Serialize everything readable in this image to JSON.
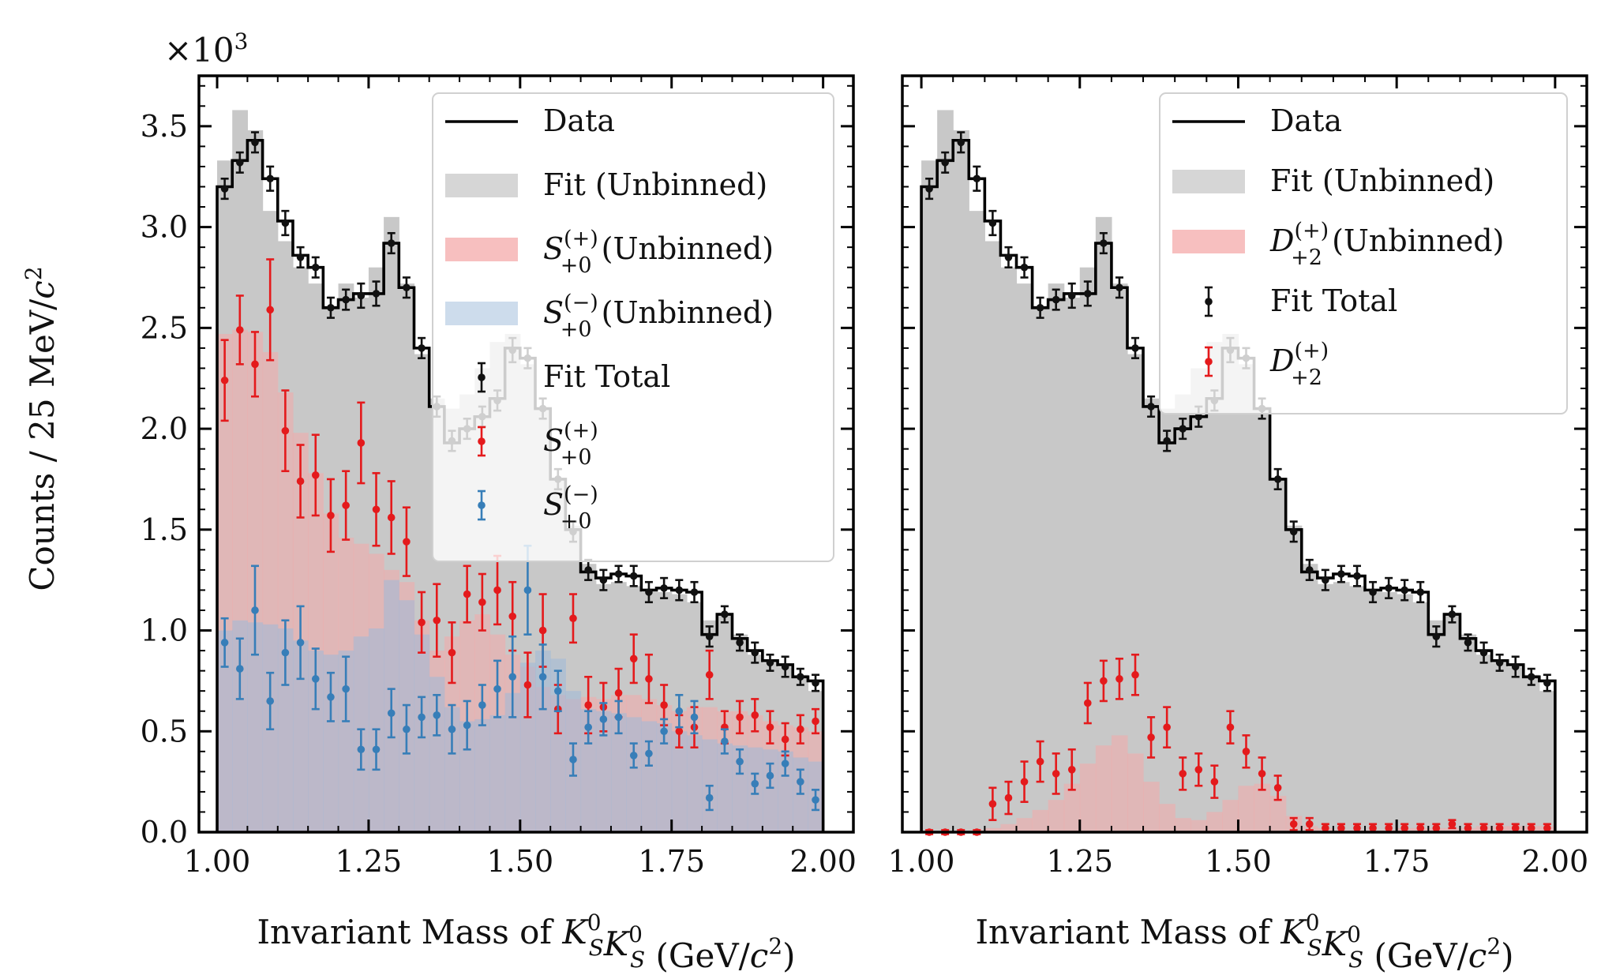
{
  "figure": {
    "y_multiplier_base": "×10",
    "y_multiplier_exp": "3",
    "ylabel_text": "Counts / 25 MeV/",
    "ylabel_var": "c",
    "ylabel_exp": "2"
  },
  "chart_data": [
    {
      "type": "bar",
      "panel": "left",
      "xlabel": {
        "pre": "Invariant Mass of ",
        "k": "K",
        "sup": "0",
        "sub": "S",
        "post": " (GeV/",
        "c": "c",
        "csup": "2",
        "close": ")"
      },
      "ylabel": "Counts / 25 MeV/c²",
      "xlim": [
        0.97,
        2.05
      ],
      "ylim": [
        0.0,
        3.75
      ],
      "y_scale_factor": 1000,
      "xticks": [
        "1.00",
        "1.25",
        "1.50",
        "1.75",
        "2.00"
      ],
      "yticks": [
        "0.0",
        "0.5",
        "1.0",
        "1.5",
        "2.0",
        "2.5",
        "3.0",
        "3.5"
      ],
      "x": [
        1.0125,
        1.0375,
        1.0625,
        1.0875,
        1.1125,
        1.1375,
        1.1625,
        1.1875,
        1.2125,
        1.2375,
        1.2625,
        1.2875,
        1.3125,
        1.3375,
        1.3625,
        1.3875,
        1.4125,
        1.4375,
        1.4625,
        1.4875,
        1.5125,
        1.5375,
        1.5625,
        1.5875,
        1.6125,
        1.6375,
        1.6625,
        1.6875,
        1.7125,
        1.7375,
        1.7625,
        1.7875,
        1.8125,
        1.8375,
        1.8625,
        1.8875,
        1.9125,
        1.9375,
        1.9625,
        1.9875
      ],
      "series": [
        {
          "name": "Data",
          "kind": "step",
          "color": "#000000",
          "values": [
            3.2,
            3.33,
            3.43,
            3.24,
            3.03,
            2.86,
            2.8,
            2.6,
            2.64,
            2.67,
            2.67,
            2.92,
            2.7,
            2.4,
            2.11,
            1.93,
            2.0,
            2.06,
            2.15,
            2.4,
            2.35,
            2.1,
            1.75,
            1.5,
            1.29,
            1.26,
            1.28,
            1.27,
            1.2,
            1.21,
            1.2,
            1.19,
            0.98,
            1.08,
            0.96,
            0.9,
            0.85,
            0.83,
            0.77,
            0.75
          ]
        },
        {
          "name": "Fit (Unbinned)",
          "kind": "fill",
          "color": "#c8c8c8",
          "values": [
            3.33,
            3.58,
            3.48,
            3.08,
            2.93,
            2.8,
            2.72,
            2.61,
            2.72,
            2.65,
            2.8,
            3.05,
            2.72,
            2.37,
            2.15,
            2.1,
            2.17,
            2.3,
            2.43,
            2.47,
            2.32,
            2.1,
            1.75,
            1.52,
            1.33,
            1.23,
            1.24,
            1.22,
            1.19,
            1.19,
            1.18,
            1.14,
            1.05,
            1.08,
            0.98,
            0.88,
            0.84,
            0.82,
            0.78,
            0.7
          ]
        },
        {
          "name": "S(+)+0 (Unbinned)",
          "kind": "fill",
          "color": "#f4aaaa",
          "values": [
            2.47,
            2.49,
            2.48,
            2.38,
            2.18,
            1.98,
            1.78,
            1.58,
            1.46,
            1.43,
            1.38,
            1.3,
            1.24,
            1.05,
            0.9,
            0.97,
            1.05,
            1.08,
            0.98,
            0.88,
            0.82,
            0.72,
            0.68,
            0.66,
            0.67,
            0.66,
            0.68,
            0.68,
            0.66,
            0.63,
            0.6,
            0.62,
            0.62,
            0.6,
            0.6,
            0.58,
            0.55,
            0.53,
            0.52,
            0.5
          ]
        },
        {
          "name": "S(−)+0 (Unbinned)",
          "kind": "fill",
          "color": "#9fbad9",
          "values": [
            1.0,
            1.05,
            1.04,
            1.03,
            1.01,
            0.95,
            0.9,
            0.88,
            0.9,
            0.97,
            1.01,
            1.25,
            1.15,
            0.98,
            0.77,
            0.62,
            0.55,
            0.56,
            0.58,
            0.69,
            0.84,
            0.9,
            0.86,
            0.7,
            0.61,
            0.6,
            0.59,
            0.57,
            0.55,
            0.54,
            0.5,
            0.48,
            0.46,
            0.44,
            0.43,
            0.42,
            0.41,
            0.4,
            0.37,
            0.35
          ]
        },
        {
          "name": "Fit Total",
          "kind": "errorbar",
          "color": "#111111",
          "values": [
            3.19,
            3.32,
            3.42,
            3.24,
            3.02,
            2.85,
            2.8,
            2.6,
            2.64,
            2.66,
            2.67,
            2.92,
            2.7,
            2.4,
            2.11,
            1.94,
            2.0,
            2.06,
            2.14,
            2.39,
            2.35,
            2.1,
            1.75,
            1.49,
            1.3,
            1.25,
            1.28,
            1.27,
            1.19,
            1.21,
            1.2,
            1.19,
            0.97,
            1.08,
            0.94,
            0.89,
            0.84,
            0.82,
            0.77,
            0.74
          ],
          "errors": [
            0.05,
            0.05,
            0.05,
            0.06,
            0.06,
            0.05,
            0.05,
            0.05,
            0.05,
            0.06,
            0.06,
            0.05,
            0.05,
            0.05,
            0.05,
            0.05,
            0.05,
            0.05,
            0.05,
            0.06,
            0.05,
            0.05,
            0.05,
            0.05,
            0.05,
            0.05,
            0.04,
            0.05,
            0.05,
            0.05,
            0.05,
            0.05,
            0.05,
            0.04,
            0.04,
            0.05,
            0.04,
            0.05,
            0.04,
            0.04
          ]
        },
        {
          "name": "S(+)+0",
          "kind": "errorbar",
          "color": "#e41a1c",
          "values": [
            2.24,
            2.49,
            2.32,
            2.59,
            1.99,
            1.74,
            1.77,
            1.57,
            1.62,
            1.93,
            1.6,
            1.56,
            1.44,
            1.04,
            1.05,
            0.89,
            1.18,
            1.14,
            1.2,
            1.07,
            0.73,
            1.0,
            0.61,
            1.06,
            0.63,
            0.62,
            0.69,
            0.86,
            0.76,
            0.63,
            0.5,
            0.52,
            0.78,
            0.52,
            0.57,
            0.58,
            0.52,
            0.46,
            0.51,
            0.55
          ],
          "errors": [
            0.2,
            0.17,
            0.16,
            0.25,
            0.2,
            0.18,
            0.2,
            0.18,
            0.17,
            0.2,
            0.18,
            0.18,
            0.17,
            0.15,
            0.18,
            0.15,
            0.14,
            0.14,
            0.17,
            0.17,
            0.16,
            0.18,
            0.12,
            0.12,
            0.14,
            0.12,
            0.12,
            0.12,
            0.12,
            0.1,
            0.08,
            0.1,
            0.12,
            0.08,
            0.08,
            0.08,
            0.08,
            0.08,
            0.07,
            0.06
          ]
        },
        {
          "name": "S(−)+0",
          "kind": "errorbar",
          "color": "#377eb8",
          "values": [
            0.94,
            0.81,
            1.1,
            0.65,
            0.89,
            0.94,
            0.76,
            0.67,
            0.71,
            0.41,
            0.41,
            0.59,
            0.51,
            0.57,
            0.58,
            0.51,
            0.53,
            0.63,
            0.71,
            0.77,
            1.2,
            0.77,
            0.7,
            0.36,
            0.52,
            0.56,
            0.57,
            0.38,
            0.39,
            0.5,
            0.6,
            0.57,
            0.17,
            0.45,
            0.35,
            0.24,
            0.28,
            0.34,
            0.25,
            0.16
          ],
          "errors": [
            0.12,
            0.15,
            0.22,
            0.14,
            0.16,
            0.18,
            0.15,
            0.12,
            0.16,
            0.1,
            0.1,
            0.12,
            0.12,
            0.1,
            0.1,
            0.12,
            0.12,
            0.1,
            0.14,
            0.2,
            0.22,
            0.16,
            0.1,
            0.08,
            0.08,
            0.08,
            0.08,
            0.06,
            0.06,
            0.06,
            0.08,
            0.08,
            0.06,
            0.06,
            0.06,
            0.05,
            0.06,
            0.06,
            0.06,
            0.05
          ]
        }
      ],
      "legend": {
        "position": "upper right",
        "items": [
          {
            "kind": "line",
            "color": "#000000",
            "label": {
              "text": "Data"
            }
          },
          {
            "kind": "patch",
            "color": "#c8c8c8",
            "label": {
              "text": "Fit (Unbinned)"
            }
          },
          {
            "kind": "patch",
            "color": "#f4aaaa",
            "label": {
              "sym": "S",
              "sup": "(+)",
              "sub": "+0",
              "text": " (Unbinned)"
            }
          },
          {
            "kind": "patch",
            "color": "#bcd0e6",
            "label": {
              "sym": "S",
              "sup": "(−)",
              "sub": "+0",
              "text": " (Unbinned)"
            }
          },
          {
            "kind": "errbar",
            "color": "#111111",
            "label": {
              "text": "Fit Total"
            }
          },
          {
            "kind": "errbar",
            "color": "#e41a1c",
            "label": {
              "sym": "S",
              "sup": "(+)",
              "sub": "+0",
              "text": ""
            }
          },
          {
            "kind": "errbar",
            "color": "#377eb8",
            "label": {
              "sym": "S",
              "sup": "(−)",
              "sub": "+0",
              "text": ""
            }
          }
        ]
      }
    },
    {
      "type": "bar",
      "panel": "right",
      "xlabel": {
        "pre": "Invariant Mass of ",
        "k": "K",
        "sup": "0",
        "sub": "S",
        "post": " (GeV/",
        "c": "c",
        "csup": "2",
        "close": ")"
      },
      "xlim": [
        0.97,
        2.05
      ],
      "ylim": [
        0.0,
        3.75
      ],
      "y_scale_factor": 1000,
      "xticks": [
        "1.00",
        "1.25",
        "1.50",
        "1.75",
        "2.00"
      ],
      "yticks": [],
      "x": [
        1.0125,
        1.0375,
        1.0625,
        1.0875,
        1.1125,
        1.1375,
        1.1625,
        1.1875,
        1.2125,
        1.2375,
        1.2625,
        1.2875,
        1.3125,
        1.3375,
        1.3625,
        1.3875,
        1.4125,
        1.4375,
        1.4625,
        1.4875,
        1.5125,
        1.5375,
        1.5625,
        1.5875,
        1.6125,
        1.6375,
        1.6625,
        1.6875,
        1.7125,
        1.7375,
        1.7625,
        1.7875,
        1.8125,
        1.8375,
        1.8625,
        1.8875,
        1.9125,
        1.9375,
        1.9625,
        1.9875
      ],
      "series": [
        {
          "name": "Data",
          "kind": "step",
          "color": "#000000",
          "values": [
            3.2,
            3.33,
            3.43,
            3.24,
            3.03,
            2.86,
            2.8,
            2.6,
            2.64,
            2.67,
            2.67,
            2.92,
            2.7,
            2.4,
            2.11,
            1.93,
            2.0,
            2.06,
            2.15,
            2.4,
            2.35,
            2.1,
            1.75,
            1.5,
            1.29,
            1.26,
            1.28,
            1.27,
            1.2,
            1.21,
            1.2,
            1.19,
            0.98,
            1.08,
            0.96,
            0.9,
            0.85,
            0.83,
            0.77,
            0.75
          ]
        },
        {
          "name": "Fit (Unbinned)",
          "kind": "fill",
          "color": "#c8c8c8",
          "values": [
            3.33,
            3.58,
            3.48,
            3.08,
            2.93,
            2.8,
            2.72,
            2.61,
            2.72,
            2.65,
            2.8,
            3.05,
            2.72,
            2.37,
            2.15,
            2.1,
            2.17,
            2.3,
            2.43,
            2.47,
            2.32,
            2.1,
            1.75,
            1.52,
            1.33,
            1.23,
            1.24,
            1.22,
            1.19,
            1.19,
            1.18,
            1.14,
            1.05,
            1.08,
            0.98,
            0.88,
            0.84,
            0.82,
            0.78,
            0.7
          ]
        },
        {
          "name": "D(+)+2 (Unbinned)",
          "kind": "fill",
          "color": "#f4aaaa",
          "values": [
            0.0,
            0.0,
            0.0,
            0.01,
            0.02,
            0.04,
            0.07,
            0.11,
            0.16,
            0.24,
            0.34,
            0.43,
            0.48,
            0.39,
            0.25,
            0.14,
            0.07,
            0.06,
            0.1,
            0.16,
            0.23,
            0.24,
            0.18,
            0.08,
            0.03,
            0.02,
            0.01,
            0.01,
            0.01,
            0.01,
            0.02,
            0.02,
            0.02,
            0.02,
            0.02,
            0.03,
            0.03,
            0.03,
            0.03,
            0.03
          ]
        },
        {
          "name": "Fit Total",
          "kind": "errorbar",
          "color": "#111111",
          "values": [
            3.19,
            3.32,
            3.42,
            3.24,
            3.02,
            2.85,
            2.8,
            2.6,
            2.64,
            2.66,
            2.67,
            2.92,
            2.7,
            2.4,
            2.11,
            1.94,
            2.0,
            2.06,
            2.14,
            2.39,
            2.35,
            2.1,
            1.75,
            1.49,
            1.3,
            1.25,
            1.28,
            1.27,
            1.19,
            1.21,
            1.2,
            1.19,
            0.97,
            1.08,
            0.94,
            0.89,
            0.84,
            0.82,
            0.77,
            0.74
          ],
          "errors": [
            0.05,
            0.05,
            0.05,
            0.06,
            0.06,
            0.05,
            0.05,
            0.05,
            0.05,
            0.06,
            0.06,
            0.05,
            0.05,
            0.05,
            0.05,
            0.05,
            0.05,
            0.05,
            0.05,
            0.06,
            0.05,
            0.05,
            0.05,
            0.05,
            0.05,
            0.05,
            0.04,
            0.05,
            0.05,
            0.05,
            0.05,
            0.05,
            0.05,
            0.04,
            0.04,
            0.05,
            0.04,
            0.05,
            0.04,
            0.04
          ]
        },
        {
          "name": "D(+)+2",
          "kind": "errorbar",
          "color": "#e41a1c",
          "values": [
            0.0,
            0.0,
            0.0,
            0.0,
            0.14,
            0.17,
            0.25,
            0.35,
            0.29,
            0.31,
            0.64,
            0.75,
            0.76,
            0.78,
            0.47,
            0.52,
            0.29,
            0.31,
            0.25,
            0.52,
            0.4,
            0.29,
            0.22,
            0.04,
            0.04,
            0.02,
            0.02,
            0.02,
            0.02,
            0.02,
            0.02,
            0.02,
            0.02,
            0.04,
            0.02,
            0.02,
            0.02,
            0.02,
            0.02,
            0.02
          ],
          "errors": [
            0.01,
            0.01,
            0.01,
            0.01,
            0.08,
            0.08,
            0.1,
            0.1,
            0.1,
            0.1,
            0.1,
            0.1,
            0.1,
            0.1,
            0.1,
            0.1,
            0.08,
            0.08,
            0.08,
            0.08,
            0.08,
            0.08,
            0.06,
            0.03,
            0.03,
            0.02,
            0.02,
            0.02,
            0.02,
            0.02,
            0.02,
            0.02,
            0.02,
            0.02,
            0.02,
            0.02,
            0.02,
            0.02,
            0.02,
            0.02
          ]
        }
      ],
      "legend": {
        "position": "upper right",
        "items": [
          {
            "kind": "line",
            "color": "#000000",
            "label": {
              "text": "Data"
            }
          },
          {
            "kind": "patch",
            "color": "#c8c8c8",
            "label": {
              "text": "Fit (Unbinned)"
            }
          },
          {
            "kind": "patch",
            "color": "#f4aaaa",
            "label": {
              "sym": "D",
              "sup": "(+)",
              "sub": "+2",
              "text": " (Unbinned)"
            }
          },
          {
            "kind": "errbar",
            "color": "#111111",
            "label": {
              "text": "Fit Total"
            }
          },
          {
            "kind": "errbar",
            "color": "#e41a1c",
            "label": {
              "sym": "D",
              "sup": "(+)",
              "sub": "+2",
              "text": ""
            }
          }
        ]
      }
    }
  ]
}
